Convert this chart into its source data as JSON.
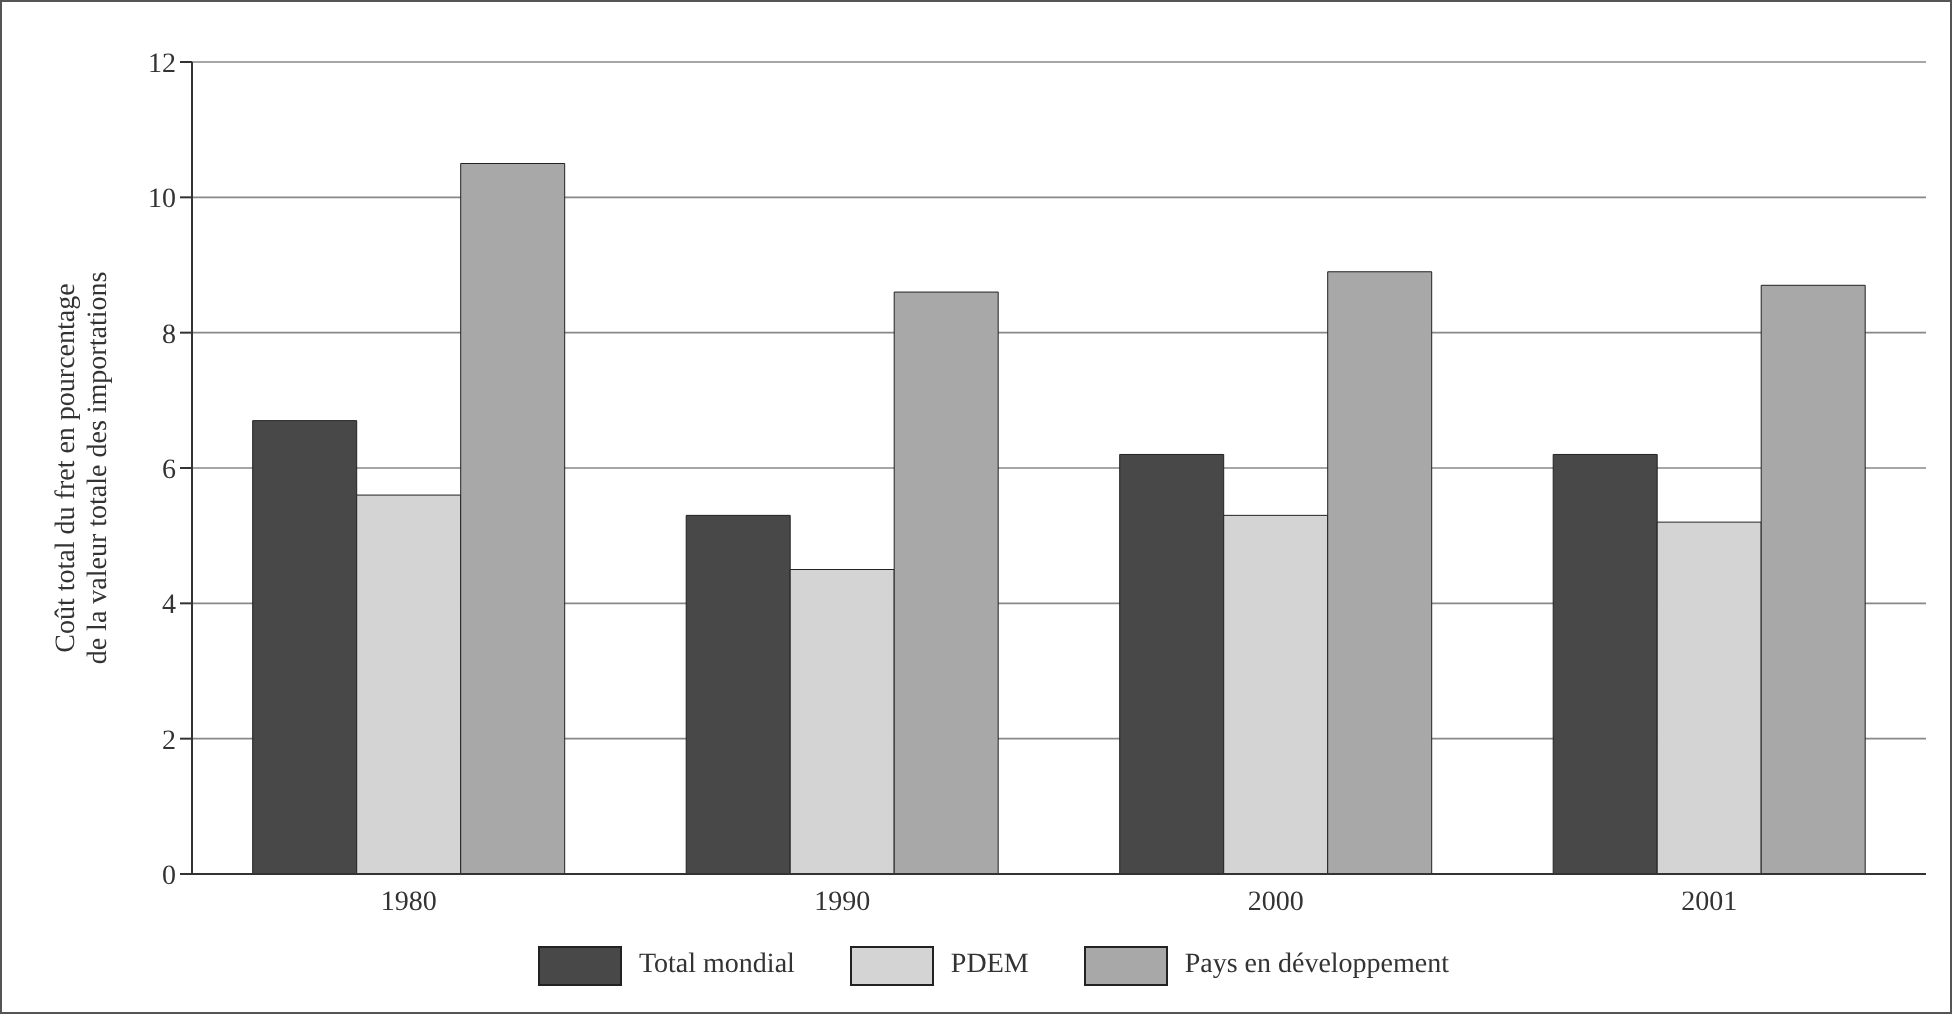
{
  "chart_data": {
    "type": "bar",
    "ylabel": "Coût total du fret en pourcentage\nde la valeur totale des importations",
    "categories": [
      "1980",
      "1990",
      "2000",
      "2001"
    ],
    "series": [
      {
        "name": "Total mondial",
        "color": "#484848",
        "values": [
          6.7,
          5.3,
          6.2,
          6.2
        ]
      },
      {
        "name": "PDEM",
        "color": "#d4d4d4",
        "values": [
          5.6,
          4.5,
          5.3,
          5.2
        ]
      },
      {
        "name": "Pays en développement",
        "color": "#a8a8a8",
        "values": [
          10.5,
          8.6,
          8.9,
          8.7
        ]
      }
    ],
    "ylim": [
      0,
      12
    ],
    "yticks": [
      0,
      2,
      4,
      6,
      8,
      10,
      12
    ],
    "grid": "y",
    "legend": "bottom"
  }
}
